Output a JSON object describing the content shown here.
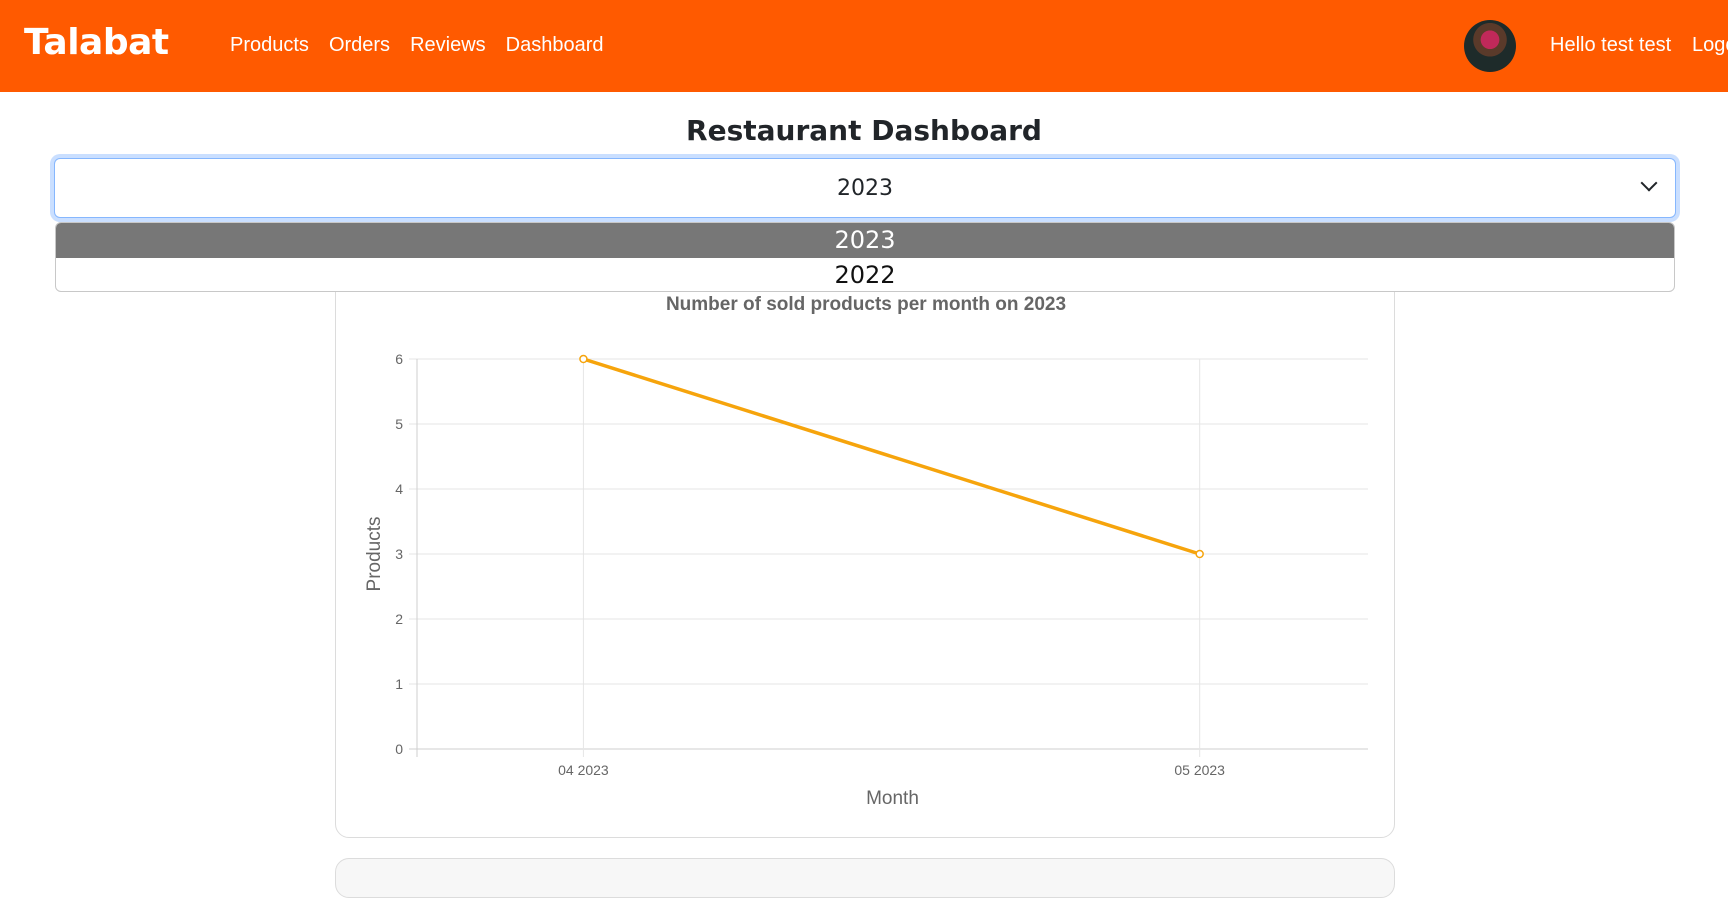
{
  "navbar": {
    "brand": "Talabat",
    "links": [
      "Products",
      "Orders",
      "Reviews",
      "Dashboard"
    ],
    "greeting": "Hello test test",
    "logout": "Logout"
  },
  "page": {
    "title": "Restaurant Dashboard",
    "year_select": {
      "value": "2023",
      "options": [
        "2023",
        "2022"
      ]
    }
  },
  "colors": {
    "navbar": "#ff5a00",
    "line": "#f6a40c",
    "selected_option": "#777777"
  },
  "chart_data": {
    "type": "line",
    "title": "Number of sold products per month on 2023",
    "xlabel": "Month",
    "ylabel": "Products",
    "categories": [
      "04 2023",
      "05 2023"
    ],
    "values": [
      6,
      3
    ],
    "ylim": [
      0,
      6
    ],
    "yticks": [
      "0",
      "1",
      "2",
      "3",
      "4",
      "5",
      "6"
    ],
    "grid": true,
    "legend": "none"
  }
}
